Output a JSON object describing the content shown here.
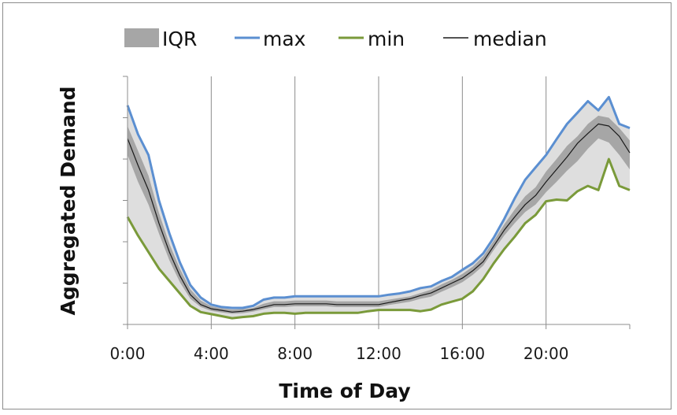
{
  "chart_data": {
    "type": "line",
    "title": "",
    "xlabel": "Time of Day",
    "ylabel": "Aggregated  Demand",
    "x_ticks": [
      "0:00",
      "4:00",
      "8:00",
      "12:00",
      "16:00",
      "20:00"
    ],
    "x_tick_hours": [
      0,
      4,
      8,
      12,
      16,
      20
    ],
    "xlim": [
      0,
      24
    ],
    "ylim": [
      0,
      6
    ],
    "y_ticks": [
      0,
      1,
      2,
      3,
      4,
      5,
      6
    ],
    "y_tick_labels_shown": false,
    "grid": "vertical",
    "legend": {
      "placement": "top",
      "items": [
        {
          "label": "IQR",
          "kind": "band",
          "color": "#a6a6a6"
        },
        {
          "label": "max",
          "kind": "line",
          "color": "#5b8fd1"
        },
        {
          "label": "min",
          "kind": "line",
          "color": "#7a9a3a"
        },
        {
          "label": "median",
          "kind": "line",
          "color": "#1a1a1a"
        }
      ]
    },
    "colors": {
      "range_band": "#dedede",
      "iqr_band": "#a6a6a6",
      "max": "#5b8fd1",
      "min": "#7a9a3a",
      "median": "#1a1a1a",
      "gridline": "#8c8c8c"
    },
    "x": [
      0,
      0.5,
      1,
      1.5,
      2,
      2.5,
      3,
      3.5,
      4,
      4.5,
      5,
      5.5,
      6,
      6.5,
      7,
      7.5,
      8,
      8.5,
      9,
      9.5,
      10,
      10.5,
      11,
      11.5,
      12,
      12.5,
      13,
      13.5,
      14,
      14.5,
      15,
      15.5,
      16,
      16.5,
      17,
      17.5,
      18,
      18.5,
      19,
      19.5,
      20,
      20.5,
      21,
      21.5,
      22,
      22.5,
      23,
      23.5,
      24
    ],
    "series": [
      {
        "name": "max",
        "values": [
          5.3,
          4.6,
          4.1,
          3.0,
          2.2,
          1.5,
          0.95,
          0.65,
          0.48,
          0.42,
          0.4,
          0.4,
          0.45,
          0.6,
          0.65,
          0.65,
          0.68,
          0.68,
          0.68,
          0.68,
          0.68,
          0.68,
          0.68,
          0.68,
          0.68,
          0.72,
          0.75,
          0.8,
          0.88,
          0.92,
          1.05,
          1.15,
          1.32,
          1.48,
          1.72,
          2.1,
          2.55,
          3.05,
          3.5,
          3.8,
          4.1,
          4.48,
          4.85,
          5.12,
          5.4,
          5.18,
          5.5,
          4.85,
          4.75
        ]
      },
      {
        "name": "median",
        "values": [
          4.5,
          3.85,
          3.25,
          2.45,
          1.75,
          1.18,
          0.72,
          0.48,
          0.38,
          0.34,
          0.3,
          0.32,
          0.36,
          0.42,
          0.48,
          0.48,
          0.5,
          0.5,
          0.5,
          0.5,
          0.48,
          0.48,
          0.48,
          0.48,
          0.48,
          0.53,
          0.58,
          0.62,
          0.7,
          0.76,
          0.88,
          1.0,
          1.12,
          1.3,
          1.52,
          1.9,
          2.28,
          2.6,
          2.9,
          3.12,
          3.45,
          3.75,
          4.05,
          4.38,
          4.62,
          4.85,
          4.8,
          4.55,
          4.15
        ]
      },
      {
        "name": "IQR upper",
        "values": [
          4.8,
          4.2,
          3.6,
          2.7,
          1.95,
          1.35,
          0.85,
          0.58,
          0.44,
          0.39,
          0.36,
          0.37,
          0.4,
          0.5,
          0.56,
          0.56,
          0.58,
          0.58,
          0.58,
          0.58,
          0.56,
          0.56,
          0.56,
          0.56,
          0.56,
          0.6,
          0.64,
          0.68,
          0.76,
          0.84,
          0.97,
          1.08,
          1.22,
          1.4,
          1.65,
          2.02,
          2.42,
          2.78,
          3.1,
          3.32,
          3.7,
          4.0,
          4.32,
          4.55,
          4.85,
          5.05,
          5.0,
          4.75,
          4.45
        ]
      },
      {
        "name": "IQR lower",
        "values": [
          4.1,
          3.45,
          2.9,
          2.2,
          1.55,
          1.02,
          0.62,
          0.42,
          0.33,
          0.29,
          0.26,
          0.27,
          0.31,
          0.37,
          0.42,
          0.42,
          0.44,
          0.44,
          0.44,
          0.44,
          0.42,
          0.42,
          0.42,
          0.42,
          0.42,
          0.47,
          0.51,
          0.55,
          0.62,
          0.67,
          0.79,
          0.9,
          1.02,
          1.2,
          1.42,
          1.8,
          2.15,
          2.45,
          2.72,
          2.9,
          3.2,
          3.45,
          3.72,
          3.95,
          4.25,
          4.5,
          4.4,
          4.1,
          3.75
        ]
      },
      {
        "name": "min",
        "values": [
          2.6,
          2.15,
          1.75,
          1.35,
          1.05,
          0.75,
          0.45,
          0.3,
          0.25,
          0.2,
          0.15,
          0.18,
          0.2,
          0.26,
          0.28,
          0.28,
          0.26,
          0.28,
          0.28,
          0.28,
          0.28,
          0.28,
          0.28,
          0.32,
          0.35,
          0.35,
          0.35,
          0.35,
          0.32,
          0.36,
          0.48,
          0.55,
          0.62,
          0.8,
          1.1,
          1.48,
          1.82,
          2.12,
          2.45,
          2.65,
          2.98,
          3.02,
          3.0,
          3.22,
          3.35,
          3.25,
          4.0,
          3.35,
          3.25
        ]
      }
    ]
  }
}
